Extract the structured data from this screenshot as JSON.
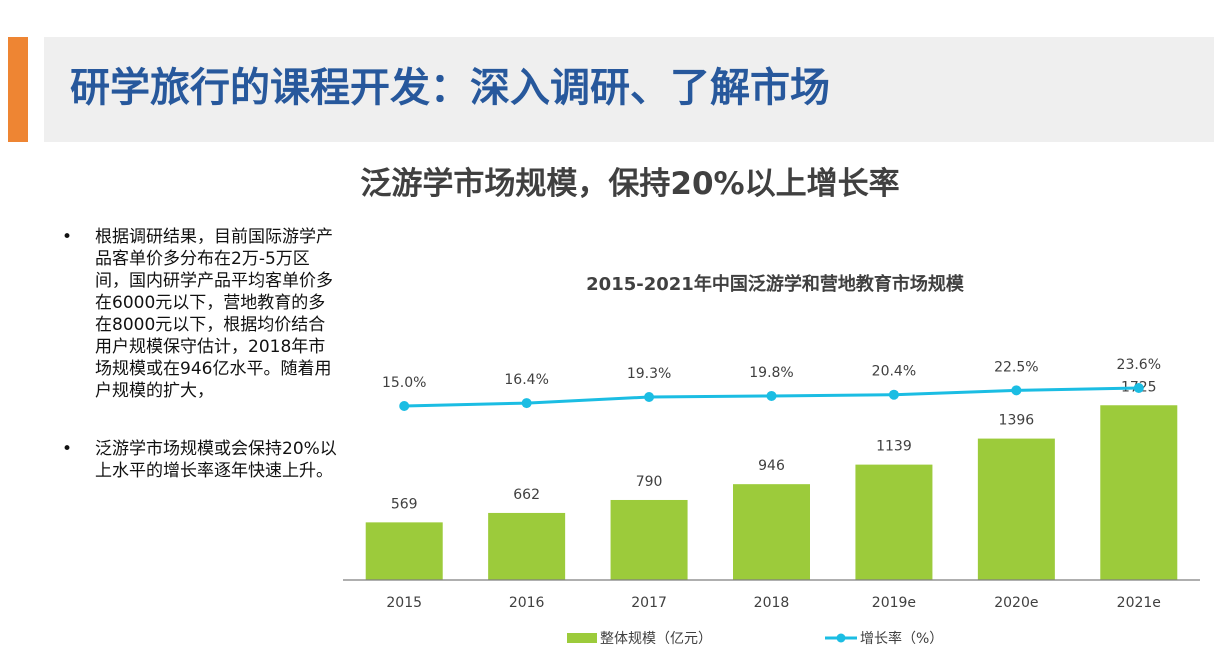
{
  "slide": {
    "title": "研学旅行的课程开发：深入调研、了解市场",
    "subtitle": "泛游学市场规模，保持20%以上增长率",
    "bullets": [
      "根据调研结果，目前国际游学产品客单价多分布在2万-5万区间，国内研学产品平均客单价多在6000元以下，营地教育的多在8000元以下，根据均价结合用户规模保守估计，2018年市场规模或在946亿水平。随着用户规模的扩大，",
      "泛游学市场规模或会保持20%以上水平的增长率逐年快速上升。"
    ],
    "bullet_mark": "•"
  },
  "colors": {
    "accent": "#ee8533",
    "header_band": "#efefef",
    "title": "#27589c",
    "bar": "#9ccb3b",
    "line": "#1bbde3",
    "axis": "#7f7f7f",
    "text": "#404040"
  },
  "chart_data": {
    "type": "bar",
    "title": "2015-2021年中国泛游学和营地教育市场规模",
    "categories": [
      "2015",
      "2016",
      "2017",
      "2018",
      "2019e",
      "2020e",
      "2021e"
    ],
    "series": [
      {
        "name": "整体规模（亿元）",
        "type": "bar",
        "values": [
          569,
          662,
          790,
          946,
          1139,
          1396,
          1725
        ]
      },
      {
        "name": "增长率（%）",
        "type": "line",
        "values": [
          15.0,
          16.4,
          19.3,
          19.8,
          20.4,
          22.5,
          23.6
        ]
      }
    ],
    "line_labels": [
      "15.0%",
      "16.4%",
      "19.3%",
      "19.8%",
      "20.4%",
      "22.5%",
      "23.6%"
    ],
    "legend_position": "bottom",
    "grid": false
  }
}
